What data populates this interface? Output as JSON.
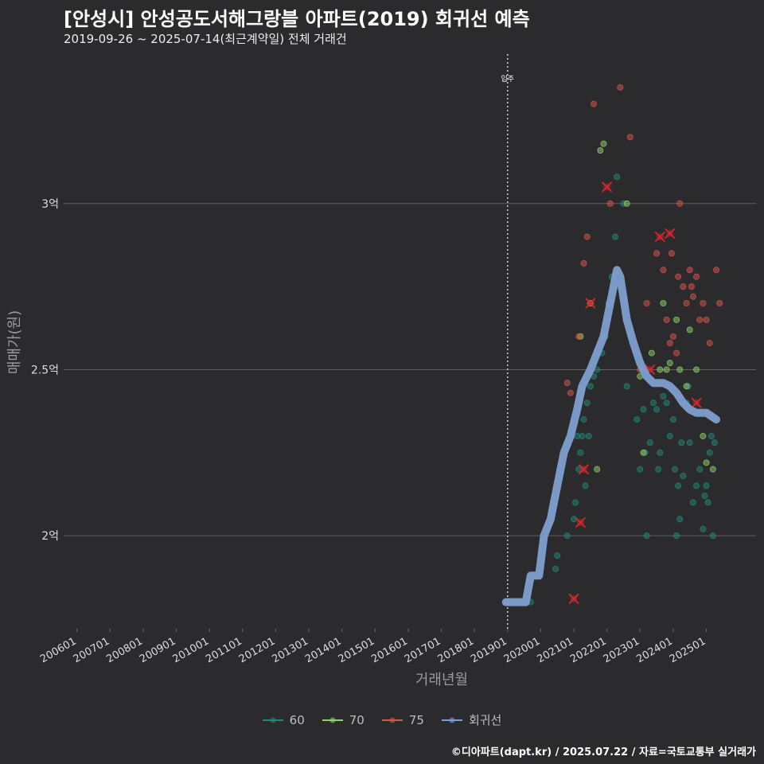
{
  "header": {
    "title": "[안성시] 안성공도서해그랑블 아파트(2019) 회귀선 예측",
    "subtitle": "2019-09-26 ~ 2025-07-14(최근계약일) 전체 거래건"
  },
  "footer": {
    "credit": "©디아파트(dapt.kr) / 2025.07.22 / 자료=국토교통부 실거래가"
  },
  "colors": {
    "background": "#2b2b2d",
    "grid": "#5f5f5f",
    "s60": "#23887a",
    "s70": "#8fd16a",
    "s75": "#d9534f",
    "regression": "#7f9fd0",
    "cancel_marker": "#d9262c"
  },
  "chart_data": {
    "type": "scatter",
    "title": "[안성시] 안성공도서해그랑블 아파트(2019) 회귀선 예측",
    "xlabel": "거래년월",
    "ylabel": "매매가(원)",
    "x_ticks": [
      "200601",
      "200701",
      "200801",
      "200901",
      "201001",
      "201101",
      "201201",
      "201301",
      "201401",
      "201501",
      "201601",
      "201701",
      "201801",
      "201901",
      "202001",
      "202101",
      "202201",
      "202301",
      "202401",
      "202501"
    ],
    "y_ticks": [
      {
        "value": 2.0,
        "label": "2억"
      },
      {
        "value": 2.5,
        "label": "2.5억"
      },
      {
        "value": 3.0,
        "label": "3억"
      }
    ],
    "xlim": [
      2005.6,
      2026.5
    ],
    "ylim": [
      1.72,
      3.45
    ],
    "annotation": {
      "label": "입주",
      "x": 2019.0
    },
    "legend": [
      {
        "name": "60",
        "key": "s60"
      },
      {
        "name": "70",
        "key": "s70"
      },
      {
        "name": "75",
        "key": "s75"
      },
      {
        "name": "회귀선",
        "key": "regression"
      }
    ],
    "series": [
      {
        "name": "60",
        "key": "s60",
        "points": [
          [
            2019.7,
            1.8
          ],
          [
            2020.5,
            1.94
          ],
          [
            2020.45,
            1.9
          ],
          [
            2020.8,
            2.0
          ],
          [
            2021.0,
            2.05
          ],
          [
            2021.05,
            2.1
          ],
          [
            2021.15,
            2.2
          ],
          [
            2021.2,
            2.25
          ],
          [
            2021.25,
            2.3
          ],
          [
            2021.3,
            2.35
          ],
          [
            2021.4,
            2.4
          ],
          [
            2021.45,
            2.3
          ],
          [
            2021.5,
            2.45
          ],
          [
            2021.6,
            2.48
          ],
          [
            2021.7,
            2.5
          ],
          [
            2021.85,
            2.55
          ],
          [
            2021.95,
            2.6
          ],
          [
            2022.05,
            2.7
          ],
          [
            2022.15,
            2.78
          ],
          [
            2022.25,
            2.9
          ],
          [
            2022.3,
            3.08
          ],
          [
            2022.5,
            3.0
          ],
          [
            2022.6,
            2.45
          ],
          [
            2022.9,
            2.35
          ],
          [
            2023.0,
            2.2
          ],
          [
            2023.1,
            2.38
          ],
          [
            2023.2,
            2.0
          ],
          [
            2023.3,
            2.28
          ],
          [
            2023.4,
            2.4
          ],
          [
            2023.5,
            2.38
          ],
          [
            2023.6,
            2.25
          ],
          [
            2023.7,
            2.42
          ],
          [
            2023.8,
            2.4
          ],
          [
            2023.9,
            2.3
          ],
          [
            2024.0,
            2.35
          ],
          [
            2024.05,
            2.2
          ],
          [
            2024.1,
            2.0
          ],
          [
            2024.15,
            2.15
          ],
          [
            2024.2,
            2.05
          ],
          [
            2024.3,
            2.18
          ],
          [
            2024.4,
            2.4
          ],
          [
            2024.5,
            2.28
          ],
          [
            2024.6,
            2.1
          ],
          [
            2024.7,
            2.15
          ],
          [
            2024.8,
            2.2
          ],
          [
            2024.9,
            2.02
          ],
          [
            2025.0,
            2.15
          ],
          [
            2025.05,
            2.1
          ],
          [
            2025.1,
            2.25
          ],
          [
            2025.15,
            2.3
          ],
          [
            2025.2,
            2.0
          ],
          [
            2025.25,
            2.28
          ],
          [
            2021.1,
            2.3
          ],
          [
            2023.55,
            2.2
          ],
          [
            2024.45,
            2.45
          ],
          [
            2023.15,
            2.25
          ],
          [
            2024.95,
            2.12
          ],
          [
            2024.25,
            2.28
          ],
          [
            2021.35,
            2.15
          ]
        ]
      },
      {
        "name": "70",
        "key": "s70",
        "points": [
          [
            2021.2,
            2.6
          ],
          [
            2021.5,
            2.7
          ],
          [
            2021.8,
            3.16
          ],
          [
            2021.9,
            3.18
          ],
          [
            2022.6,
            3.0
          ],
          [
            2023.0,
            2.48
          ],
          [
            2023.1,
            2.25
          ],
          [
            2023.35,
            2.55
          ],
          [
            2023.6,
            2.5
          ],
          [
            2023.7,
            2.7
          ],
          [
            2023.9,
            2.52
          ],
          [
            2024.2,
            2.5
          ],
          [
            2024.4,
            2.45
          ],
          [
            2024.5,
            2.62
          ],
          [
            2024.7,
            2.5
          ],
          [
            2024.9,
            2.3
          ],
          [
            2025.0,
            2.22
          ],
          [
            2025.2,
            2.2
          ],
          [
            2021.7,
            2.2
          ],
          [
            2023.8,
            2.5
          ],
          [
            2024.1,
            2.65
          ]
        ]
      },
      {
        "name": "75",
        "key": "s75",
        "points": [
          [
            2020.8,
            2.46
          ],
          [
            2020.9,
            2.43
          ],
          [
            2021.15,
            2.6
          ],
          [
            2021.3,
            2.82
          ],
          [
            2021.4,
            2.9
          ],
          [
            2021.6,
            3.3
          ],
          [
            2022.1,
            3.0
          ],
          [
            2022.4,
            3.35
          ],
          [
            2022.7,
            3.2
          ],
          [
            2023.0,
            2.5
          ],
          [
            2023.2,
            2.7
          ],
          [
            2023.5,
            2.85
          ],
          [
            2023.7,
            2.8
          ],
          [
            2023.8,
            2.65
          ],
          [
            2023.9,
            2.58
          ],
          [
            2024.0,
            2.6
          ],
          [
            2024.1,
            2.55
          ],
          [
            2024.2,
            3.0
          ],
          [
            2024.3,
            2.75
          ],
          [
            2024.4,
            2.7
          ],
          [
            2024.5,
            2.8
          ],
          [
            2024.6,
            2.72
          ],
          [
            2024.7,
            2.78
          ],
          [
            2024.8,
            2.65
          ],
          [
            2024.9,
            2.7
          ],
          [
            2025.0,
            2.65
          ],
          [
            2025.1,
            2.58
          ],
          [
            2025.3,
            2.8
          ],
          [
            2025.4,
            2.7
          ],
          [
            2024.15,
            2.78
          ],
          [
            2024.55,
            2.75
          ],
          [
            2023.95,
            2.85
          ]
        ]
      },
      {
        "name": "회귀선",
        "key": "regression",
        "points": [
          [
            2018.95,
            1.8
          ],
          [
            2019.3,
            1.8
          ],
          [
            2019.55,
            1.8
          ],
          [
            2019.7,
            1.88
          ],
          [
            2019.95,
            1.88
          ],
          [
            2020.1,
            2.0
          ],
          [
            2020.3,
            2.05
          ],
          [
            2020.5,
            2.15
          ],
          [
            2020.7,
            2.25
          ],
          [
            2020.9,
            2.3
          ],
          [
            2021.1,
            2.38
          ],
          [
            2021.25,
            2.45
          ],
          [
            2021.5,
            2.5
          ],
          [
            2021.7,
            2.55
          ],
          [
            2021.9,
            2.6
          ],
          [
            2022.1,
            2.7
          ],
          [
            2022.3,
            2.8
          ],
          [
            2022.4,
            2.78
          ],
          [
            2022.6,
            2.65
          ],
          [
            2022.8,
            2.58
          ],
          [
            2023.0,
            2.52
          ],
          [
            2023.2,
            2.48
          ],
          [
            2023.4,
            2.46
          ],
          [
            2023.7,
            2.46
          ],
          [
            2023.9,
            2.45
          ],
          [
            2024.1,
            2.43
          ],
          [
            2024.3,
            2.4
          ],
          [
            2024.5,
            2.38
          ],
          [
            2024.7,
            2.37
          ],
          [
            2025.0,
            2.37
          ],
          [
            2025.3,
            2.35
          ]
        ]
      }
    ],
    "cancelled_deals": [
      [
        2021.0,
        1.81
      ],
      [
        2021.2,
        2.04
      ],
      [
        2021.3,
        2.2
      ],
      [
        2021.5,
        2.7
      ],
      [
        2022.0,
        3.05
      ],
      [
        2023.3,
        2.5
      ],
      [
        2023.6,
        2.9
      ],
      [
        2023.9,
        2.91
      ],
      [
        2024.7,
        2.4
      ]
    ]
  }
}
